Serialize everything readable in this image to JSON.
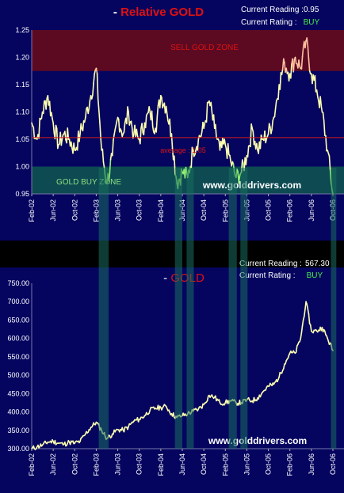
{
  "chart_data": [
    {
      "type": "line",
      "title": "Relative GOLD",
      "title_prefix": "- ",
      "current_reading_label": "Current Reading :",
      "current_reading_value": "0.95",
      "current_rating_label": "Current Rating :",
      "current_rating_value": "BUY",
      "watermark": "www.golddrivers.com",
      "ylim": [
        0.95,
        1.25
      ],
      "yticks": [
        "1.25",
        "1.20",
        "1.15",
        "1.10",
        "1.05",
        "1.00",
        "0.95"
      ],
      "xlim": [
        "2002-02",
        "2006-10"
      ],
      "xticks": [
        "Feb-02",
        "Jun-02",
        "Oct-02",
        "Feb-03",
        "Jun-03",
        "Oct-03",
        "Feb-04",
        "Jun-04",
        "Oct-04",
        "Feb-05",
        "Jun-05",
        "Oct-05",
        "Feb-06",
        "Jun-06",
        "Oct-06"
      ],
      "zones": [
        {
          "label": "SELL GOLD  ZONE",
          "from": 1.175,
          "to": 1.25,
          "color": "#5c0a22"
        },
        {
          "label": "GOLD  BUY ZONE",
          "from": 0.95,
          "to": 1.0,
          "color": "#0d4a52"
        }
      ],
      "average": {
        "label": "average : 1.05",
        "value": 1.053,
        "color": "#d41b1b"
      },
      "line_color": "#ffffb0",
      "buy_color": "#90ee70",
      "sell_color": "#ffc0a0",
      "series": [
        {
          "x": [
            "2002-02",
            "2002-03",
            "2002-04",
            "2002-05",
            "2002-06",
            "2002-07",
            "2002-08",
            "2002-09",
            "2002-10",
            "2002-11",
            "2002-12",
            "2003-01",
            "2003-02",
            "2003-03",
            "2003-04",
            "2003-05",
            "2003-06",
            "2003-07",
            "2003-08",
            "2003-09",
            "2003-10",
            "2003-11",
            "2003-12",
            "2004-01",
            "2004-02",
            "2004-03",
            "2004-04",
            "2004-05",
            "2004-06",
            "2004-07",
            "2004-08",
            "2004-09",
            "2004-10",
            "2004-11",
            "2004-12",
            "2005-01",
            "2005-02",
            "2005-03",
            "2005-04",
            "2005-05",
            "2005-06",
            "2005-07",
            "2005-08",
            "2005-09",
            "2005-10",
            "2005-11",
            "2005-12",
            "2006-01",
            "2006-02",
            "2006-03",
            "2006-04",
            "2006-05",
            "2006-06",
            "2006-07",
            "2006-08",
            "2006-09",
            "2006-10"
          ],
          "values": [
            1.08,
            1.05,
            1.1,
            1.13,
            1.08,
            1.04,
            1.06,
            1.05,
            1.03,
            1.06,
            1.09,
            1.13,
            1.18,
            1.03,
            0.97,
            1.02,
            1.09,
            1.06,
            1.1,
            1.06,
            1.05,
            1.08,
            1.1,
            1.07,
            1.13,
            1.11,
            1.06,
            0.97,
            0.99,
            0.98,
            1.03,
            1.05,
            1.07,
            1.12,
            1.07,
            1.03,
            1.04,
            1.01,
            0.98,
            0.99,
            1.02,
            1.07,
            1.03,
            1.05,
            1.06,
            1.09,
            1.15,
            1.19,
            1.17,
            1.2,
            1.18,
            1.23,
            1.17,
            1.14,
            1.1,
            1.03,
            0.95
          ]
        }
      ]
    },
    {
      "type": "line",
      "title": "GOLD",
      "title_prefix": "- ",
      "current_reading_label": "Current Reading :",
      "current_reading_value": "567.30",
      "current_rating_label": "Current Rating :",
      "current_rating_value": "BUY",
      "watermark": "www.golddrivers.com",
      "ylim": [
        300,
        750
      ],
      "yticks": [
        "750.00",
        "700.00",
        "650.00",
        "600.00",
        "550.00",
        "500.00",
        "450.00",
        "400.00",
        "350.00",
        "300.00"
      ],
      "xlim": [
        "2002-02",
        "2006-10"
      ],
      "xticks": [
        "Feb-02",
        "Jun-02",
        "Oct-02",
        "Feb-03",
        "Jun-03",
        "Oct-03",
        "Feb-04",
        "Jun-04",
        "Oct-04",
        "Feb-05",
        "Jun-05",
        "Oct-05",
        "Feb-06",
        "Jun-06",
        "Oct-06"
      ],
      "line_color": "#ffffb0",
      "buy_color": "#90ee70",
      "series": [
        {
          "x": [
            "2002-02",
            "2002-03",
            "2002-04",
            "2002-05",
            "2002-06",
            "2002-07",
            "2002-08",
            "2002-09",
            "2002-10",
            "2002-11",
            "2002-12",
            "2003-01",
            "2003-02",
            "2003-03",
            "2003-04",
            "2003-05",
            "2003-06",
            "2003-07",
            "2003-08",
            "2003-09",
            "2003-10",
            "2003-11",
            "2003-12",
            "2004-01",
            "2004-02",
            "2004-03",
            "2004-04",
            "2004-05",
            "2004-06",
            "2004-07",
            "2004-08",
            "2004-09",
            "2004-10",
            "2004-11",
            "2004-12",
            "2005-01",
            "2005-02",
            "2005-03",
            "2005-04",
            "2005-05",
            "2005-06",
            "2005-07",
            "2005-08",
            "2005-09",
            "2005-10",
            "2005-11",
            "2005-12",
            "2006-01",
            "2006-02",
            "2006-03",
            "2006-04",
            "2006-05",
            "2006-06",
            "2006-07",
            "2006-08",
            "2006-09",
            "2006-10"
          ],
          "values": [
            300,
            305,
            310,
            318,
            320,
            315,
            312,
            318,
            315,
            320,
            340,
            358,
            372,
            350,
            328,
            340,
            352,
            350,
            360,
            375,
            380,
            390,
            405,
            410,
            412,
            415,
            395,
            385,
            390,
            395,
            402,
            408,
            420,
            445,
            440,
            425,
            425,
            430,
            425,
            425,
            433,
            430,
            438,
            455,
            470,
            475,
            495,
            530,
            560,
            560,
            600,
            700,
            620,
            620,
            630,
            600,
            567
          ]
        }
      ]
    }
  ],
  "highlight_bands": [
    {
      "from": "2003-02-15",
      "to": "2003-04-10"
    },
    {
      "from": "2004-04-20",
      "to": "2004-06-01"
    },
    {
      "from": "2004-06-25",
      "to": "2004-08-05"
    },
    {
      "from": "2005-02-20",
      "to": "2005-04-05"
    },
    {
      "from": "2005-04-25",
      "to": "2005-06-05"
    },
    {
      "from": "2006-09-20",
      "to": "2006-10-20"
    }
  ],
  "colors": {
    "page_bg": "#000000",
    "panel_bg": "#050560",
    "axis_text": "#ffffff",
    "title_red": "#e01010",
    "rating_green": "#44ee44",
    "band_fill": "#1a6e5e"
  }
}
